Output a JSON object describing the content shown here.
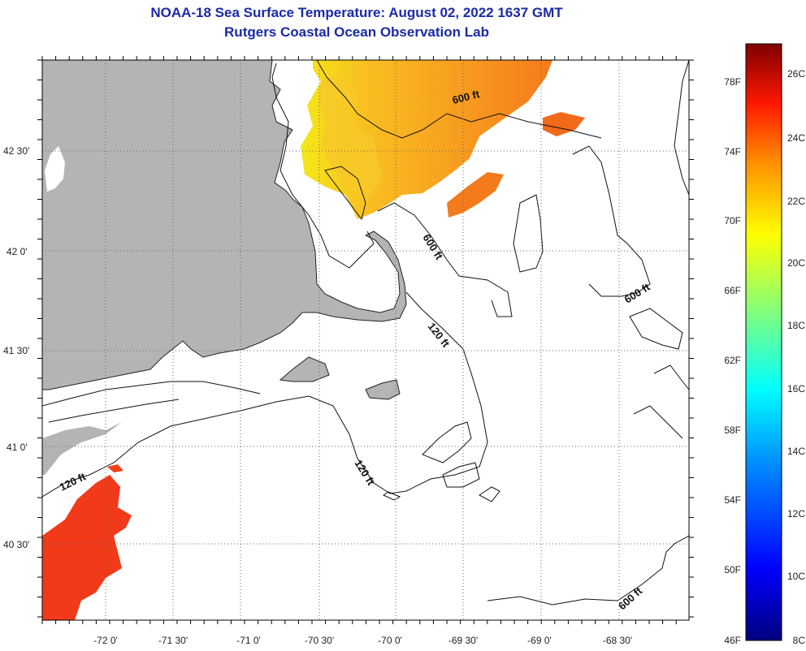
{
  "header": {
    "title": "NOAA-18 Sea Surface Temperature:  August 02, 2022 1637 GMT",
    "subtitle": "Rutgers Coastal Ocean Observation Lab"
  },
  "map": {
    "lon_labels": [
      "-72 0'",
      "-71 30'",
      "-71 0'",
      "-70 30'",
      "-70 0'",
      "-69 30'",
      "-69 0'",
      "-68 30'"
    ],
    "lat_labels": [
      "42 30'",
      "42 0'",
      "41 30'",
      "41 0'",
      "40 30'"
    ],
    "depth_labels": [
      "600 ft",
      "600 ft",
      "600 ft",
      "600 ft",
      "120 ft",
      "120 ft",
      "120 ft"
    ],
    "colors": {
      "land": "#b4b4b4",
      "water_missing": "#ffffff",
      "grid": "#555555"
    }
  },
  "colorbar": {
    "fahrenheit_labels": [
      "78F",
      "74F",
      "70F",
      "66F",
      "62F",
      "58F",
      "54F",
      "50F",
      "46F"
    ],
    "celsius_labels": [
      "26C",
      "24C",
      "22C",
      "20C",
      "18C",
      "16C",
      "14C",
      "12C",
      "10C",
      "8C"
    ],
    "range_c": [
      8,
      27
    ]
  }
}
